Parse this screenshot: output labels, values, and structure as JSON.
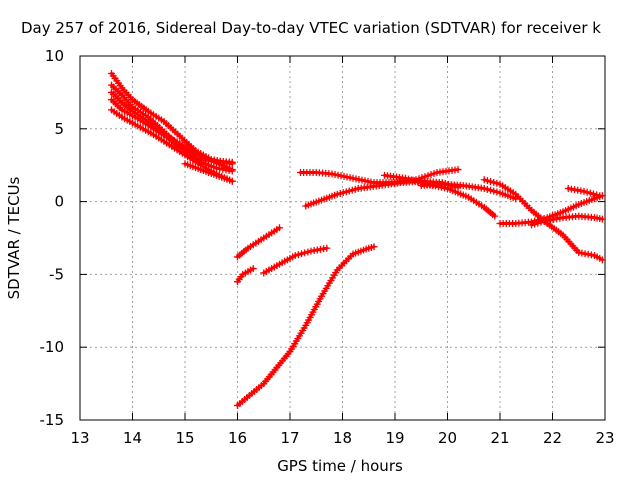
{
  "chart_data": {
    "type": "scatter",
    "title": "Day 257 of 2016, Sidereal Day-to-day VTEC variation (SDTVAR) for receiver k",
    "xlabel": "GPS time / hours",
    "ylabel": "SDTVAR / TECUs",
    "xlim": [
      13,
      23
    ],
    "ylim": [
      -15,
      10
    ],
    "xticks": [
      "13",
      "14",
      "15",
      "16",
      "17",
      "18",
      "19",
      "20",
      "21",
      "22",
      "23"
    ],
    "yticks": [
      "10",
      "5",
      "0",
      "-5",
      "-10",
      "-15"
    ],
    "grid": true,
    "legend": "none",
    "marker": "plus",
    "series_color": "#ff0000",
    "series": [
      {
        "x": [
          13.6,
          13.8,
          14.0,
          14.3,
          14.6,
          14.9,
          15.2,
          15.5,
          15.9
        ],
        "y": [
          8.8,
          7.8,
          7.0,
          6.2,
          5.5,
          4.5,
          3.5,
          2.9,
          2.6
        ]
      },
      {
        "x": [
          13.6,
          13.8,
          14.0,
          14.3,
          14.6,
          14.9,
          15.2,
          15.5,
          15.9
        ],
        "y": [
          8.0,
          7.3,
          6.5,
          5.8,
          4.8,
          3.8,
          3.0,
          2.8,
          2.7
        ]
      },
      {
        "x": [
          13.6,
          13.8,
          14.0,
          14.3,
          14.6,
          14.9,
          15.2,
          15.5,
          15.9
        ],
        "y": [
          7.5,
          6.8,
          6.2,
          5.5,
          4.6,
          4.0,
          3.3,
          2.8,
          2.2
        ]
      },
      {
        "x": [
          13.6,
          13.8,
          14.1,
          14.4,
          14.7,
          15.0,
          15.3,
          15.6,
          15.9
        ],
        "y": [
          7.0,
          6.3,
          5.7,
          5.0,
          4.3,
          3.5,
          2.7,
          2.3,
          2.1
        ]
      },
      {
        "x": [
          13.6,
          13.8,
          14.1,
          14.4,
          14.7,
          15.0,
          15.3,
          15.6,
          15.9
        ],
        "y": [
          6.3,
          5.8,
          5.2,
          4.6,
          3.9,
          3.2,
          2.5,
          1.9,
          1.4
        ]
      },
      {
        "x": [
          15.0,
          15.3,
          15.6,
          15.9
        ],
        "y": [
          2.6,
          2.2,
          1.8,
          1.4
        ]
      },
      {
        "x": [
          16.0,
          16.2,
          16.5,
          16.8
        ],
        "y": [
          -3.8,
          -3.2,
          -2.5,
          -1.8
        ]
      },
      {
        "x": [
          16.0,
          16.1,
          16.3
        ],
        "y": [
          -5.5,
          -5.0,
          -4.6
        ]
      },
      {
        "x": [
          16.5,
          16.8,
          17.1,
          17.4,
          17.7
        ],
        "y": [
          -4.9,
          -4.3,
          -3.7,
          -3.4,
          -3.2
        ]
      },
      {
        "x": [
          16.0,
          16.5,
          17.0,
          17.3,
          17.6,
          17.9,
          18.2,
          18.5,
          18.6
        ],
        "y": [
          -14.0,
          -12.5,
          -10.3,
          -8.5,
          -6.5,
          -4.7,
          -3.6,
          -3.2,
          -3.1
        ]
      },
      {
        "x": [
          17.2,
          17.5,
          17.8,
          18.2,
          18.6,
          19.0,
          19.4,
          19.8,
          20.2
        ],
        "y": [
          2.0,
          2.0,
          1.9,
          1.6,
          1.3,
          1.3,
          1.5,
          2.0,
          2.2
        ]
      },
      {
        "x": [
          17.3,
          17.6,
          17.9,
          18.3,
          18.7,
          19.1,
          19.5,
          19.9,
          20.2
        ],
        "y": [
          -0.3,
          0.1,
          0.5,
          0.9,
          1.1,
          1.3,
          1.4,
          1.3,
          1.0
        ]
      },
      {
        "x": [
          18.8,
          19.2,
          19.6,
          20.0,
          20.4,
          20.7,
          20.9
        ],
        "y": [
          1.8,
          1.6,
          1.2,
          0.9,
          0.3,
          -0.4,
          -1.0
        ]
      },
      {
        "x": [
          19.5,
          19.9,
          20.3,
          20.7,
          21.0,
          21.3
        ],
        "y": [
          1.1,
          1.2,
          1.1,
          0.9,
          0.6,
          0.2
        ]
      },
      {
        "x": [
          20.7,
          21.0,
          21.3,
          21.6,
          21.9,
          22.2,
          22.5,
          22.8,
          22.95
        ],
        "y": [
          1.5,
          1.2,
          0.5,
          -0.6,
          -1.5,
          -2.3,
          -3.5,
          -3.7,
          -4.0
        ]
      },
      {
        "x": [
          21.0,
          21.3,
          21.6,
          21.9,
          22.2,
          22.5,
          22.8,
          22.95
        ],
        "y": [
          -1.5,
          -1.5,
          -1.4,
          -1.1,
          -0.7,
          -0.2,
          0.2,
          0.4
        ]
      },
      {
        "x": [
          21.6,
          21.9,
          22.2,
          22.5,
          22.8,
          22.95
        ],
        "y": [
          -1.6,
          -1.3,
          -1.1,
          -1.0,
          -1.1,
          -1.2
        ]
      },
      {
        "x": [
          22.3,
          22.6,
          22.9
        ],
        "y": [
          0.9,
          0.7,
          0.4
        ]
      }
    ]
  }
}
